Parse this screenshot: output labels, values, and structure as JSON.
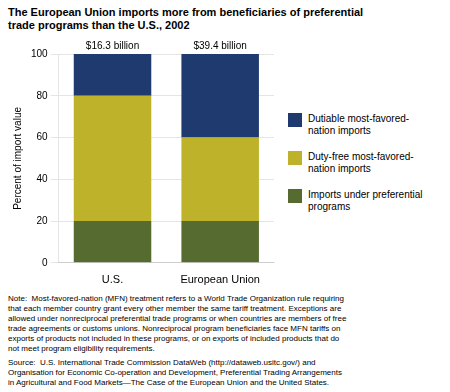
{
  "chart_data": {
    "type": "bar",
    "stacked": true,
    "title": "The European Union imports more from beneficiaries of preferential\ntrade programs than the U.S., 2002",
    "ylabel": "Percent of import value",
    "categories": [
      "U.S.",
      "European Union"
    ],
    "series": [
      {
        "name": "Imports under preferential\nprograms",
        "color": "#556B2F",
        "values": [
          20,
          20
        ]
      },
      {
        "name": "Duty-free most-favored-\nnation imports",
        "color": "#BDB229",
        "values": [
          60,
          40
        ]
      },
      {
        "name": "Dutiable most-favored-\nnation imports",
        "color": "#1F3A6E",
        "values": [
          20,
          40
        ]
      }
    ],
    "annotations": [
      "$16.3 billion",
      "$39.4 billion"
    ],
    "ylim": [
      0,
      100
    ],
    "yticks": [
      0,
      20,
      40,
      60,
      80,
      100
    ],
    "grid": true,
    "legend": "right",
    "note": "Note:  Most-favored-nation (MFN) treatment refers to a World Trade Organization rule requiring\nthat each member country grant every other member the same tariff treatment. Exceptions are\nallowed under nonreciprocal preferential trade programs or when countries are members of free\ntrade agreements or customs unions. Nonreciprocal program beneficiaries face MFN tariffs on\nexports of products not included in these programs, or on exports of included products that do\nnot meet program eligibility requirements.",
    "source": "Source:  U.S. International Trade Commission DataWeb (http://dataweb.usitc.gov/) and\nOrganisation for Economic Co-operation and Development, Preferential Trading Arrangements\nin Agricultural and Food Markets—The Case of the European Union and the United States."
  }
}
